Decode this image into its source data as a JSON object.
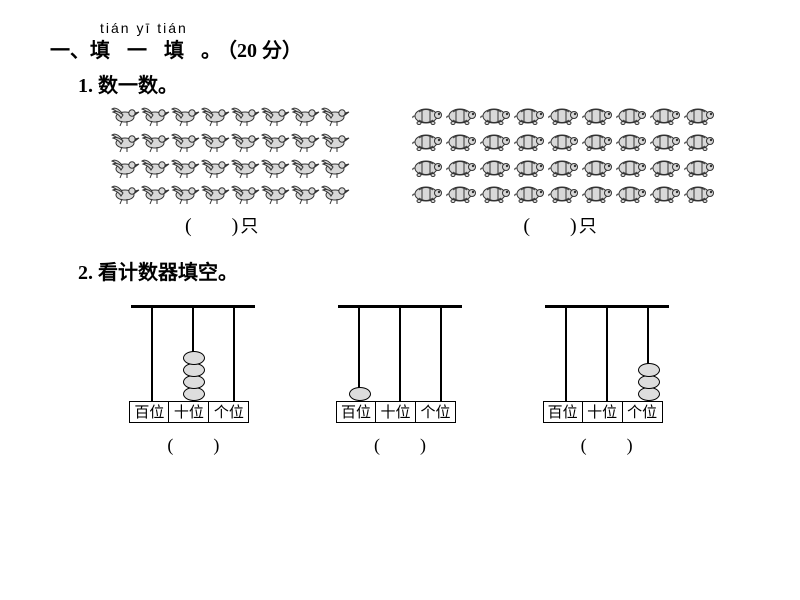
{
  "pinyin": "tián  yī  tián",
  "heading_prefix": "一、",
  "heading_main": "填 一 填 。",
  "heading_points": "（20 分）",
  "q1_label": "1. 数一数。",
  "q2_label": "2. 看计数器填空。",
  "birds": {
    "rows": 4,
    "cols": 8
  },
  "turtles": {
    "rows": 4,
    "cols": 9
  },
  "blank_open": "(",
  "blank_close": ")",
  "unit": "只",
  "counters": [
    {
      "beads": [
        0,
        4,
        0
      ]
    },
    {
      "beads": [
        1,
        0,
        0
      ]
    },
    {
      "beads": [
        0,
        0,
        3
      ]
    }
  ],
  "place_labels": [
    "百位",
    "十位",
    "个位"
  ],
  "icon_colors": {
    "stroke": "#333333",
    "fill": "#d8d8d8"
  }
}
